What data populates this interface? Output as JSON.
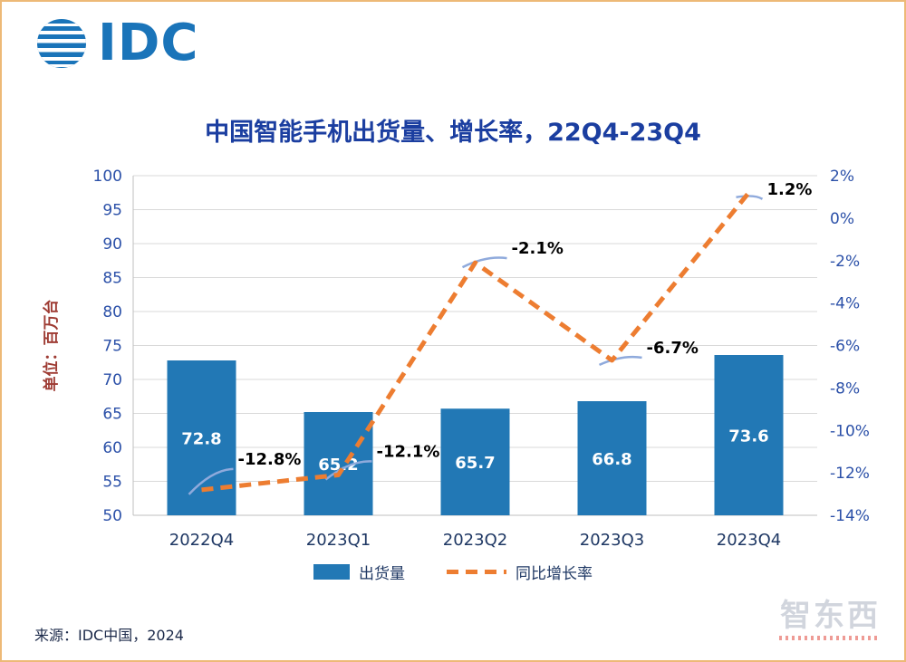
{
  "logo": {
    "text": "IDC"
  },
  "chart_data": {
    "type": "bar",
    "title": "中国智能手机出货量、增长率，22Q4-23Q4",
    "categories": [
      "2022Q4",
      "2023Q1",
      "2023Q2",
      "2023Q3",
      "2023Q4"
    ],
    "series": [
      {
        "name": "出货量",
        "type": "bar",
        "values": [
          72.8,
          65.2,
          65.7,
          66.8,
          73.6
        ],
        "color": "#2278B5"
      },
      {
        "name": "同比增长率",
        "type": "line",
        "values": [
          -12.8,
          -12.1,
          -2.1,
          -6.7,
          1.2
        ],
        "color": "#ED7D31",
        "style": "dashed"
      }
    ],
    "left_axis": {
      "label": "单位：百万台",
      "min": 50,
      "max": 100,
      "step": 5
    },
    "right_axis": {
      "min": -14,
      "max": 2,
      "step": 2,
      "unit": "%"
    },
    "grid": true,
    "legend_position": "bottom",
    "colors": {
      "title": "#1B3EA0",
      "axis_text": "#2B50A8",
      "x_axis_text": "#1F3864",
      "unit_label": "#9E3B33",
      "grid": "#D9D9D9",
      "axis_line": "#BFBFBF",
      "marker": "#8FAADC",
      "bar_label": "#FFFFFF",
      "point_label": "#000000"
    }
  },
  "source": "来源：IDC中国，2024",
  "watermark": {
    "text": "智东西"
  }
}
